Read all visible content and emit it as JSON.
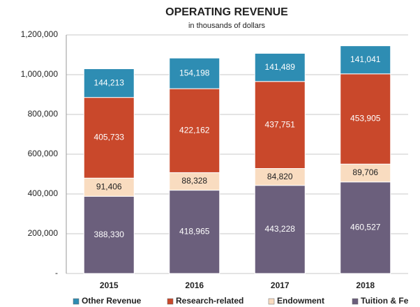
{
  "chart_data": {
    "type": "stacked_bar",
    "title": "OPERATING REVENUE",
    "subtitle": "in thousands of dollars",
    "categories": [
      "2015",
      "2016",
      "2017",
      "2018"
    ],
    "series": [
      {
        "name": "Other Revenue",
        "color": "#2e8db3",
        "label_color": "#ffffff",
        "values": [
          144213,
          154198,
          141489,
          141041
        ],
        "value_labels": [
          "144,213",
          "154,198",
          "141,489",
          "141,041"
        ]
      },
      {
        "name": "Research-related",
        "color": "#c9482b",
        "label_color": "#ffffff",
        "values": [
          405733,
          422162,
          437751,
          453905
        ],
        "value_labels": [
          "405,733",
          "422,162",
          "437,751",
          "453,905"
        ]
      },
      {
        "name": "Endowment",
        "color": "#f9dcc0",
        "label_color": "#222222",
        "values": [
          91406,
          88328,
          84820,
          89706
        ],
        "value_labels": [
          "91,406",
          "88,328",
          "84,820",
          "89,706"
        ]
      },
      {
        "name": "Tuition & Fe",
        "color": "#6b5f7c",
        "label_color": "#ffffff",
        "values": [
          388330,
          418965,
          443228,
          460527
        ],
        "value_labels": [
          "388,330",
          "418,965",
          "443,228",
          "460,527"
        ]
      }
    ],
    "ylim": [
      0,
      1200000
    ],
    "yticks": [
      {
        "value": 0,
        "label": "-"
      },
      {
        "value": 200000,
        "label": "200,000"
      },
      {
        "value": 400000,
        "label": "400,000"
      },
      {
        "value": 600000,
        "label": "600,000"
      },
      {
        "value": 800000,
        "label": "800,000"
      },
      {
        "value": 1000000,
        "label": "1,000,000"
      },
      {
        "value": 1200000,
        "label": "1,200,000"
      }
    ],
    "grid": true,
    "legend": "bottom"
  }
}
